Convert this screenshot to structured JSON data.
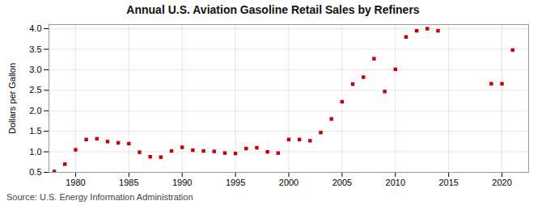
{
  "chart_data": {
    "type": "scatter",
    "title": "Annual U.S. Aviation Gasoline Retail Sales by Refiners",
    "ylabel": "Dollars per Gallon",
    "source": "Source: U.S. Energy Information Administration",
    "x": [
      1978,
      1979,
      1980,
      1981,
      1982,
      1983,
      1984,
      1985,
      1986,
      1987,
      1988,
      1989,
      1990,
      1991,
      1992,
      1993,
      1994,
      1995,
      1996,
      1997,
      1998,
      1999,
      2000,
      2001,
      2002,
      2003,
      2004,
      2005,
      2006,
      2007,
      2008,
      2009,
      2010,
      2011,
      2012,
      2013,
      2014,
      2019,
      2020,
      2021
    ],
    "values": [
      0.52,
      0.7,
      1.05,
      1.3,
      1.32,
      1.25,
      1.22,
      1.2,
      0.99,
      0.88,
      0.87,
      1.02,
      1.11,
      1.04,
      1.02,
      1.01,
      0.97,
      0.96,
      1.08,
      1.1,
      1.0,
      0.97,
      1.3,
      1.3,
      1.27,
      1.47,
      1.8,
      2.22,
      2.65,
      2.82,
      3.27,
      2.47,
      3.01,
      3.8,
      3.95,
      4.0,
      3.95,
      2.66,
      2.66,
      3.48
    ],
    "color": "#cc0000",
    "marker": "square",
    "xlim": [
      1977.5,
      2022.5
    ],
    "ylim": [
      0.5,
      4.1
    ],
    "xticks": [
      1980,
      1985,
      1990,
      1995,
      2000,
      2005,
      2010,
      2015,
      2020
    ],
    "yticks": [
      0.5,
      {
        "value": 1,
        "label": "1.0"
      },
      1.5,
      {
        "value": 2,
        "label": "2.0"
      },
      2.5,
      {
        "value": 3,
        "label": "3.0"
      },
      3.5,
      {
        "value": 4,
        "label": "4.0"
      }
    ],
    "grid": true
  }
}
